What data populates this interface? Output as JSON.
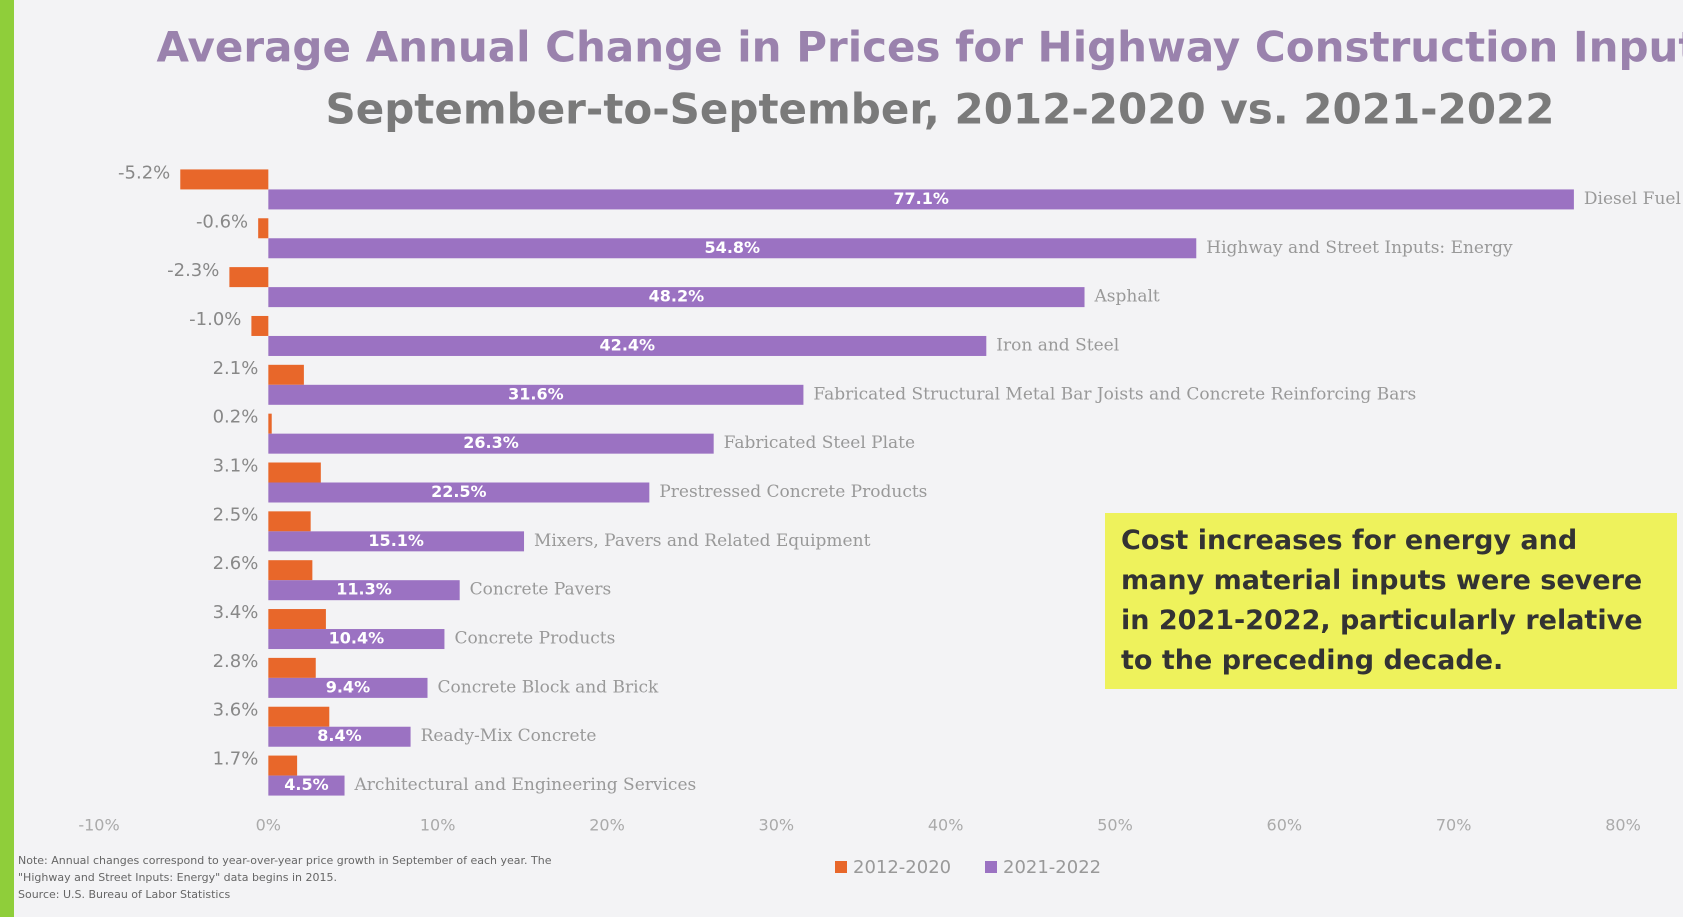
{
  "chart_data": {
    "type": "bar",
    "orientation": "horizontal",
    "title": "Average Annual Change in Prices for Highway Construction Inputs",
    "subtitle": "September-to-September, 2012-2020 vs. 2021-2022",
    "categories": [
      "Diesel Fuel",
      "Highway and Street Inputs: Energy",
      "Asphalt",
      "Iron and Steel",
      "Fabricated Structural Metal Bar Joists and Concrete Reinforcing Bars",
      "Fabricated Steel Plate",
      "Prestressed Concrete Products",
      "Mixers, Pavers and Related Equipment",
      "Concrete Pavers",
      "Concrete Products",
      "Concrete Block and Brick",
      "Ready-Mix Concrete",
      "Architectural and Engineering Services"
    ],
    "series": [
      {
        "name": "2012-2020",
        "color": "#e8672a",
        "values": [
          -5.2,
          -0.6,
          -2.3,
          -1.0,
          2.1,
          0.2,
          3.1,
          2.5,
          2.6,
          3.4,
          2.8,
          3.6,
          1.7
        ],
        "value_labels": [
          "-5.2%",
          "-0.6%",
          "-2.3%",
          "-1.0%",
          "2.1%",
          "0.2%",
          "3.1%",
          "2.5%",
          "2.6%",
          "3.4%",
          "2.8%",
          "3.6%",
          "1.7%"
        ]
      },
      {
        "name": "2021-2022",
        "color": "#9b72c2",
        "values": [
          77.1,
          54.8,
          48.2,
          42.4,
          31.6,
          26.3,
          22.5,
          15.1,
          11.3,
          10.4,
          9.4,
          8.4,
          4.5
        ],
        "value_labels": [
          "77.1%",
          "54.8%",
          "48.2%",
          "42.4%",
          "31.6%",
          "26.3%",
          "22.5%",
          "15.1%",
          "11.3%",
          "10.4%",
          "9.4%",
          "8.4%",
          "4.5%"
        ]
      }
    ],
    "xlim": [
      -10,
      80
    ],
    "xticks": [
      {
        "value": -10,
        "label": "-10%"
      },
      {
        "value": 0,
        "label": "0%"
      },
      {
        "value": 10,
        "label": "10%"
      },
      {
        "value": 20,
        "label": "20%"
      },
      {
        "value": 30,
        "label": "30%"
      },
      {
        "value": 40,
        "label": "40%"
      },
      {
        "value": 50,
        "label": "50%"
      },
      {
        "value": 60,
        "label": "60%"
      },
      {
        "value": 70,
        "label": "70%"
      },
      {
        "value": 80,
        "label": "80%"
      }
    ],
    "grid": false,
    "legend": "bottom",
    "annotation": "Cost increases for energy and many material inputs were severe in 2021-2022, particularly relative to the preceding decade.",
    "note": "Note: Annual changes correspond to year-over-year price growth in September of each year. The \"Highway and Street Inputs: Energy\" data begins in 2015.",
    "source": "Source: U.S. Bureau of Labor Statistics"
  }
}
